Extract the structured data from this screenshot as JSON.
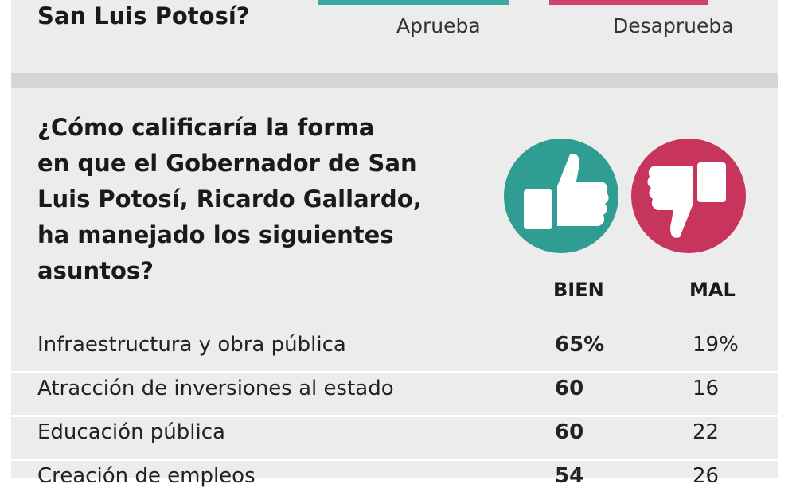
{
  "previous_question": {
    "title_tail": "San Luis Potosí?",
    "options": [
      "Aprueba",
      "Desaprueba"
    ]
  },
  "question": {
    "lines": [
      "¿Cómo calificaría la forma",
      "en que el Gobernador de San",
      "Luis Potosí, Ricardo Gallardo,",
      "ha manejado los siguientes",
      "asuntos?"
    ]
  },
  "table": {
    "columns": [
      "BIEN",
      "MAL"
    ],
    "rows": [
      [
        "Infraestructura y obra pública",
        "65%",
        "19%"
      ],
      [
        "Atracción de inversiones al estado",
        "60",
        "16"
      ],
      [
        "Educación pública",
        "60",
        "22"
      ],
      [
        "Creación de empleos",
        "54",
        "26"
      ]
    ]
  }
}
